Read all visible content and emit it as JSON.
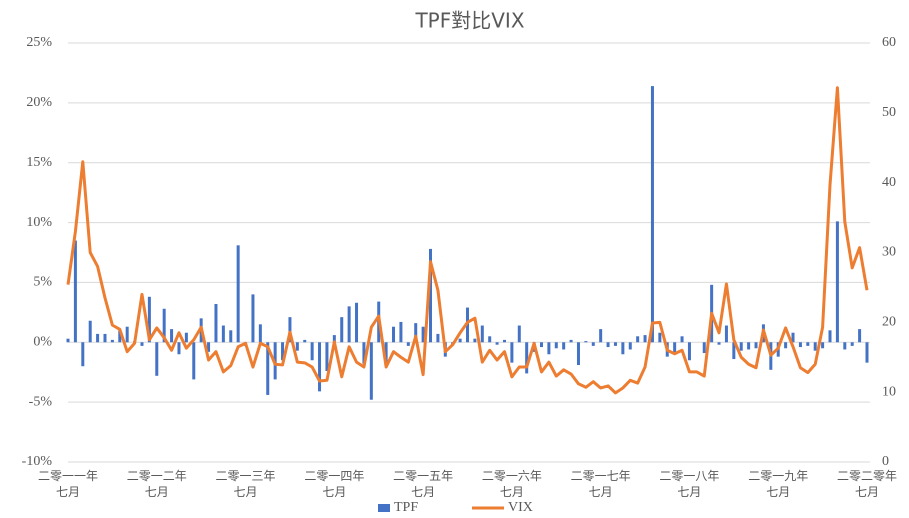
{
  "chart_data": {
    "type": "bar_line",
    "title": "TPF對比VIX",
    "categories": [
      "二零一一年七月",
      null,
      null,
      null,
      null,
      null,
      null,
      null,
      null,
      null,
      null,
      null,
      "二零一二年七月",
      null,
      null,
      null,
      null,
      null,
      null,
      null,
      null,
      null,
      null,
      null,
      "二零一三年七月",
      null,
      null,
      null,
      null,
      null,
      null,
      null,
      null,
      null,
      null,
      null,
      "二零一四年七月",
      null,
      null,
      null,
      null,
      null,
      null,
      null,
      null,
      null,
      null,
      null,
      "二零一五年七月",
      null,
      null,
      null,
      null,
      null,
      null,
      null,
      null,
      null,
      null,
      null,
      "二零一六年七月",
      null,
      null,
      null,
      null,
      null,
      null,
      null,
      null,
      null,
      null,
      null,
      "二零一七年七月",
      null,
      null,
      null,
      null,
      null,
      null,
      null,
      null,
      null,
      null,
      null,
      "二零一八年七月",
      null,
      null,
      null,
      null,
      null,
      null,
      null,
      null,
      null,
      null,
      null,
      "二零一九年七月",
      null,
      null,
      null,
      null,
      null,
      null,
      null,
      null,
      null,
      null,
      null,
      "二零二零年七月"
    ],
    "series": [
      {
        "name": "TPF",
        "type": "bar",
        "color": "#4472c4",
        "values": [
          0.3,
          8.5,
          -2.0,
          1.8,
          0.7,
          0.7,
          0.2,
          1.0,
          1.3,
          0.1,
          -0.3,
          3.8,
          -2.8,
          2.8,
          1.1,
          -1.0,
          0.8,
          -3.1,
          2.0,
          -0.8,
          3.2,
          1.4,
          1.0,
          8.1,
          -0.3,
          4.0,
          1.5,
          -4.4,
          -3.1,
          -1.5,
          2.1,
          -0.7,
          0.2,
          -1.5,
          -4.1,
          -2.4,
          0.6,
          2.1,
          3.0,
          3.3,
          -1.8,
          -4.8,
          3.4,
          -2.0,
          1.3,
          1.7,
          -0.3,
          1.6,
          1.3,
          7.8,
          0.7,
          -1.2,
          -0.2,
          0.3,
          2.9,
          0.3,
          1.4,
          0.5,
          -0.2,
          0.2,
          -1.7,
          1.4,
          -2.6,
          -0.8,
          -0.4,
          -1.0,
          -0.5,
          -0.6,
          0.2,
          -1.9,
          0.1,
          -0.3,
          1.1,
          -0.4,
          -0.3,
          -1.0,
          -0.6,
          0.5,
          0.6,
          21.4,
          0.8,
          -1.2,
          -0.9,
          0.5,
          -1.5,
          0.0,
          -0.9,
          4.8,
          -0.2,
          1.4,
          -1.4,
          -0.7,
          -0.6,
          -0.5,
          1.5,
          -2.3,
          -1.2,
          -0.5,
          0.8,
          -0.4,
          -0.3,
          -0.7,
          -0.5,
          1.0,
          10.1,
          -0.6,
          -0.3,
          1.1,
          -1.7
        ]
      },
      {
        "name": "VIX",
        "type": "line",
        "axis": "y2",
        "color": "#ed7d31",
        "values": [
          25.4,
          33,
          43,
          30,
          28,
          23.5,
          19.6,
          19,
          15.8,
          17,
          24,
          17.5,
          19.2,
          17.8,
          16,
          18.5,
          16.3,
          17.5,
          19.3,
          14.6,
          15.8,
          12.9,
          13.8,
          16.5,
          17,
          13.6,
          17,
          16.5,
          14,
          13.9,
          18.6,
          14.3,
          14.2,
          13.6,
          11.6,
          11.7,
          17.2,
          12.2,
          16.5,
          14.3,
          13.6,
          19.3,
          20.9,
          13.6,
          15.8,
          15,
          14.3,
          18,
          12.5,
          28.7,
          24.6,
          15.8,
          16.8,
          18.5,
          20,
          20.6,
          14.3,
          16,
          14.6,
          15.8,
          12.2,
          13.6,
          13.6,
          17,
          12.9,
          14.3,
          12.3,
          13.2,
          12.6,
          11.2,
          10.7,
          11.5,
          10.6,
          10.9,
          9.9,
          10.6,
          11.7,
          11.3,
          13.6,
          19.9,
          20,
          16,
          15.5,
          16,
          12.9,
          12.9,
          12.3,
          21.3,
          18.5,
          25.5,
          17.5,
          15,
          14,
          13.5,
          18.9,
          15.3,
          16.3,
          19.2,
          16.5,
          13.5,
          12.8,
          14,
          19.3,
          39.7,
          53.6,
          34.4,
          27.8,
          30.7,
          24.6
        ]
      }
    ],
    "ylim": [
      -10,
      25
    ],
    "yticks": [
      {
        "value": -10,
        "label": "-10%"
      },
      {
        "value": -5,
        "label": "-5%"
      },
      {
        "value": 0,
        "label": "0%"
      },
      {
        "value": 5,
        "label": "5%"
      },
      {
        "value": 10,
        "label": "10%"
      },
      {
        "value": 15,
        "label": "15%"
      },
      {
        "value": 20,
        "label": "20%"
      },
      {
        "value": 25,
        "label": "25%"
      }
    ],
    "y2lim": [
      0,
      60
    ],
    "y2ticks": [
      0,
      10,
      20,
      30,
      40,
      50,
      60
    ],
    "grid": true,
    "legend": "bottom"
  }
}
